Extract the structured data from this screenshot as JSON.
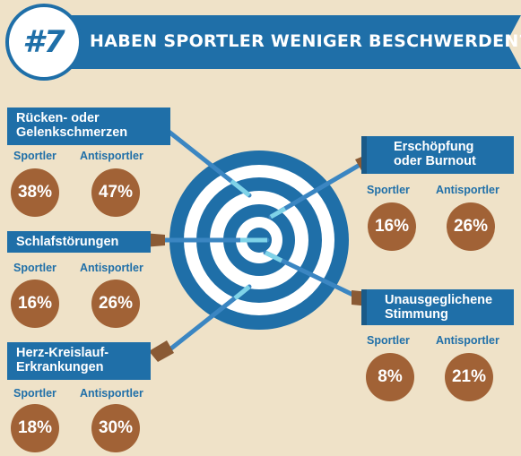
{
  "header": {
    "number": "#7",
    "title": "HABEN SPORTLER WENIGER BESCHWERDEN?"
  },
  "groups": [
    {
      "lines": [
        "Rücken- oder",
        "Gelenkschmerzen"
      ],
      "sportler_label": "Sportler",
      "antisportler_label": "Antisportler",
      "sportler_value": "38%",
      "antisportler_value": "47%"
    },
    {
      "lines": [
        "Schlafstörungen"
      ],
      "sportler_label": "Sportler",
      "antisportler_label": "Antisportler",
      "sportler_value": "16%",
      "antisportler_value": "26%"
    },
    {
      "lines": [
        "Herz-Kreislauf-",
        "Erkrankungen"
      ],
      "sportler_label": "Sportler",
      "antisportler_label": "Antisportler",
      "sportler_value": "18%",
      "antisportler_value": "30%"
    },
    {
      "lines": [
        "Erschöpfung",
        "oder Burnout"
      ],
      "sportler_label": "Sportler",
      "antisportler_label": "Antisportler",
      "sportler_value": "16%",
      "antisportler_value": "26%"
    },
    {
      "lines": [
        "Unausgeglichene",
        "Stimmung"
      ],
      "sportler_label": "Sportler",
      "antisportler_label": "Antisportler",
      "sportler_value": "8%",
      "antisportler_value": "21%"
    }
  ],
  "colors": {
    "background": "#efe2c8",
    "primary_blue": "#1f6fa8",
    "value_circle": "#a16236",
    "arrow_fletching": "#8a5a34"
  },
  "icons": {
    "target": "target-icon",
    "arrow": "arrow-icon"
  }
}
